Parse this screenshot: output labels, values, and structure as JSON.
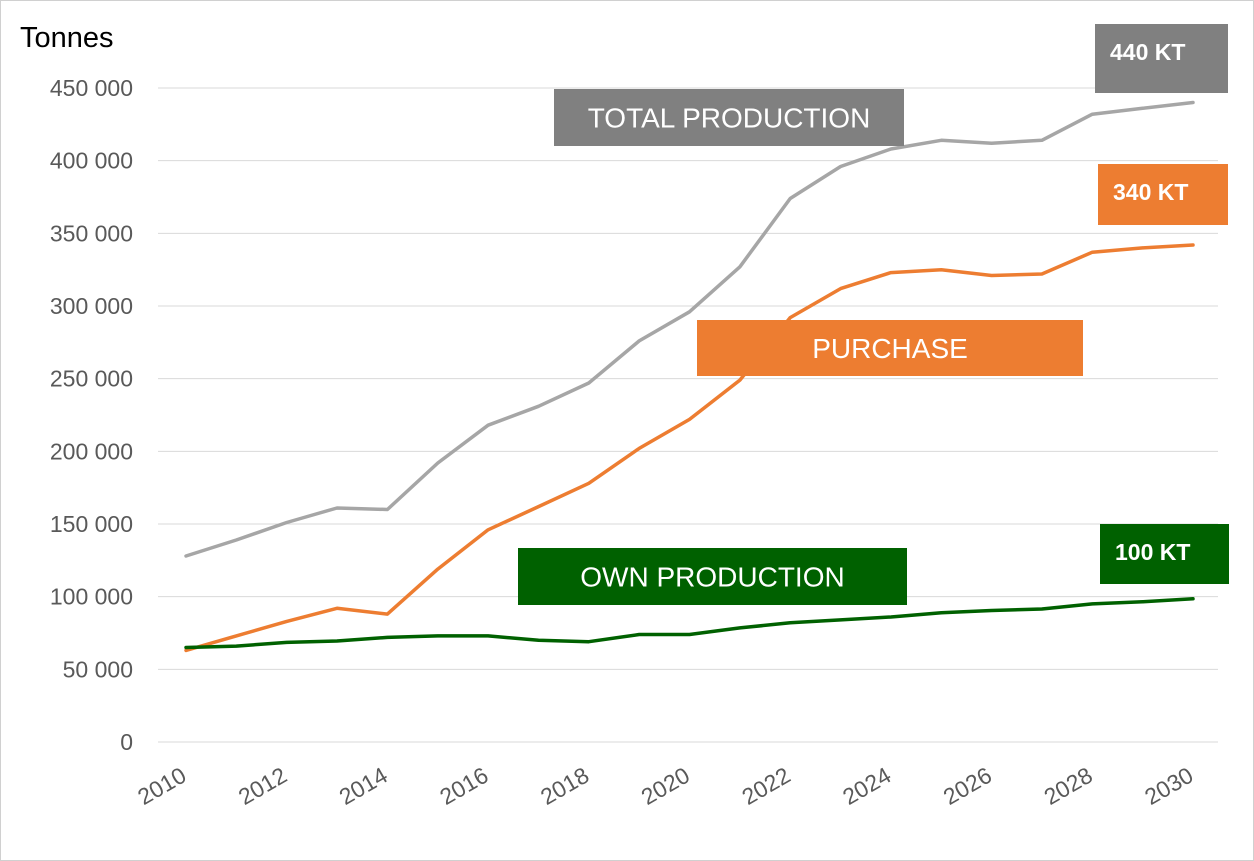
{
  "chart_data": {
    "type": "line",
    "ylabel": "Tonnes",
    "ylim": [
      0,
      450000
    ],
    "yticks": [
      0,
      50000,
      100000,
      150000,
      200000,
      250000,
      300000,
      350000,
      400000,
      450000
    ],
    "ytick_labels": [
      "0",
      "50 000",
      "100 000",
      "150 000",
      "200 000",
      "250 000",
      "300 000",
      "350 000",
      "400 000",
      "450 000"
    ],
    "xticks": [
      "2010",
      "2012",
      "2014",
      "2016",
      "2018",
      "2020",
      "2022",
      "2024",
      "2026",
      "2028",
      "2030"
    ],
    "grid": true,
    "legend": "none",
    "x": [
      2010,
      2011,
      2012,
      2013,
      2014,
      2015,
      2016,
      2017,
      2018,
      2019,
      2020,
      2021,
      2022,
      2023,
      2024,
      2025,
      2026,
      2027,
      2028,
      2029,
      2030
    ],
    "series": [
      {
        "key": "total",
        "color": "#a6a6a6",
        "values": [
          128000,
          139000,
          151000,
          161000,
          160000,
          192000,
          218000,
          231000,
          247000,
          276000,
          296000,
          327000,
          374000,
          396000,
          408000,
          414000,
          412000,
          414000,
          432000,
          436000,
          440000
        ]
      },
      {
        "key": "purchase",
        "color": "#ed7d31",
        "values": [
          63000,
          73000,
          83000,
          92000,
          88000,
          119000,
          146000,
          162000,
          178000,
          202000,
          222000,
          249000,
          292000,
          312000,
          323000,
          325000,
          321000,
          322000,
          337000,
          340000,
          342000
        ]
      },
      {
        "key": "own",
        "color": "#006100",
        "values": [
          65000,
          66000,
          68500,
          69500,
          72000,
          73000,
          73000,
          70000,
          69000,
          74000,
          74000,
          78500,
          82000,
          84000,
          86000,
          89000,
          90500,
          91500,
          95000,
          96500,
          98500
        ]
      }
    ],
    "annotations": [
      {
        "text": "TOTAL PRODUCTION",
        "color": "#808080"
      },
      {
        "text": "PURCHASE",
        "color": "#ed7d31"
      },
      {
        "text": "OWN PRODUCTION",
        "color": "#006100"
      },
      {
        "text": "440 KT",
        "color": "#808080"
      },
      {
        "text": "340 KT",
        "color": "#ed7d31"
      },
      {
        "text": "100 KT",
        "color": "#006100"
      }
    ]
  }
}
